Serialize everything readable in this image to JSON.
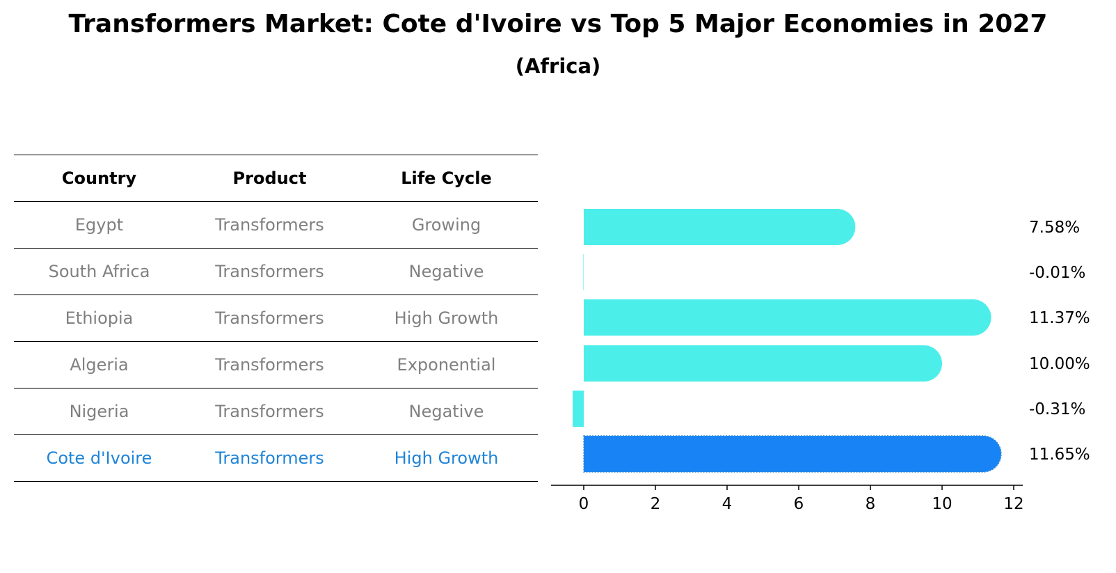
{
  "title": "Transformers Market: Cote d'Ivoire vs Top 5 Major Economies in 2027",
  "subtitle": "(Africa)",
  "table": {
    "headers": [
      "Country",
      "Product",
      "Life Cycle"
    ],
    "rows": [
      {
        "country": "Egypt",
        "product": "Transformers",
        "life_cycle": "Growing"
      },
      {
        "country": "South Africa",
        "product": "Transformers",
        "life_cycle": "Negative"
      },
      {
        "country": "Ethiopia",
        "product": "Transformers",
        "life_cycle": "High Growth"
      },
      {
        "country": "Algeria",
        "product": "Transformers",
        "life_cycle": "Exponential"
      },
      {
        "country": "Nigeria",
        "product": "Transformers",
        "life_cycle": "Negative"
      },
      {
        "country": "Cote d'Ivoire",
        "product": "Transformers",
        "life_cycle": "High Growth"
      }
    ]
  },
  "colors": {
    "bar": "#4ceeea",
    "highlight_bar": "#1783f5",
    "highlight_text": "#1f84d8",
    "muted_text": "#808080"
  },
  "chart_data": {
    "type": "bar",
    "orientation": "horizontal",
    "title": "Transformers Market: Cote d'Ivoire vs Top 5 Major Economies in 2027",
    "subtitle": "(Africa)",
    "categories": [
      "Egypt",
      "South Africa",
      "Ethiopia",
      "Algeria",
      "Nigeria",
      "Cote d'Ivoire"
    ],
    "values": [
      7.58,
      -0.01,
      11.37,
      10.0,
      -0.31,
      11.65
    ],
    "value_labels": [
      "7.58%",
      "-0.01%",
      "11.37%",
      "10.00%",
      "-0.31%",
      "11.65%"
    ],
    "highlight": "Cote d'Ivoire",
    "xlim": [
      -0.9,
      12.3
    ],
    "xticks": [
      0,
      2,
      4,
      6,
      8,
      10,
      12
    ],
    "xlabel": "",
    "ylabel": "",
    "grid": false
  }
}
